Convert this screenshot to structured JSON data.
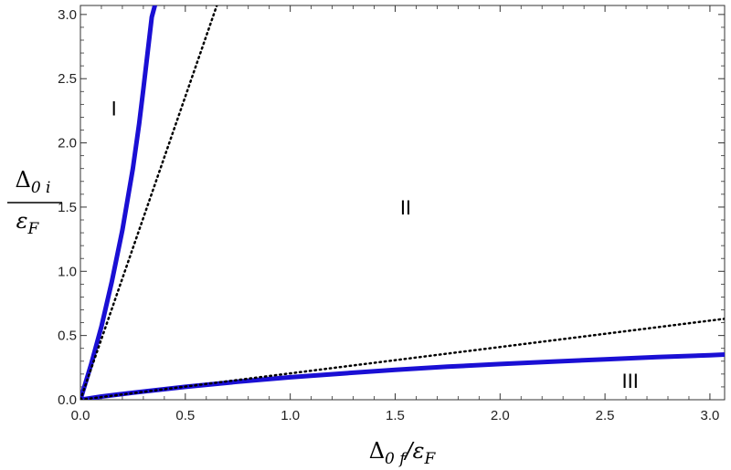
{
  "chart_data": {
    "type": "line",
    "title": "",
    "xlim": [
      0,
      3.07
    ],
    "ylim": [
      0,
      3.07
    ],
    "x_ticks": [
      "0.0",
      "0.5",
      "1.0",
      "1.5",
      "2.0",
      "2.5",
      "3.0"
    ],
    "y_ticks": [
      "0.0",
      "0.5",
      "1.0",
      "1.5",
      "2.0",
      "2.5",
      "3.0"
    ],
    "xlabel": {
      "main": "Δ",
      "sub": "0 f",
      "tail": "/ε",
      "tail_sub": "F"
    },
    "ylabel": {
      "num_main": "Δ",
      "num_sub": "0 i",
      "den_main": "ε",
      "den_sub": "F"
    },
    "grid": false,
    "legend": "none",
    "region_labels": [
      {
        "text": "I",
        "x": 0.16,
        "y": 2.27
      },
      {
        "text": "II",
        "x": 1.55,
        "y": 1.5
      },
      {
        "text": "III",
        "x": 2.62,
        "y": 0.15
      }
    ],
    "series": [
      {
        "style": "solid",
        "color": "#1a0fd4",
        "x": [
          0,
          0.05,
          0.1,
          0.15,
          0.2,
          0.25,
          0.28,
          0.3,
          0.32,
          0.34,
          0.355
        ],
        "y": [
          0,
          0.27,
          0.57,
          0.92,
          1.32,
          1.8,
          2.15,
          2.42,
          2.7,
          2.98,
          3.07
        ]
      },
      {
        "style": "solid",
        "color": "#1a0fd4",
        "x": [
          0,
          0.1,
          0.25,
          0.5,
          0.75,
          1.0,
          1.25,
          1.5,
          1.75,
          2.0,
          2.25,
          2.5,
          2.75,
          3.0,
          3.07
        ],
        "y": [
          0,
          0.025,
          0.055,
          0.1,
          0.14,
          0.175,
          0.205,
          0.233,
          0.257,
          0.278,
          0.297,
          0.315,
          0.332,
          0.347,
          0.352
        ]
      },
      {
        "style": "dotted",
        "color": "#000000",
        "x": [
          0,
          0.65
        ],
        "y": [
          0,
          3.07
        ]
      },
      {
        "style": "dotted",
        "color": "#000000",
        "x": [
          0,
          3.07
        ],
        "y": [
          0,
          0.63
        ]
      }
    ]
  }
}
